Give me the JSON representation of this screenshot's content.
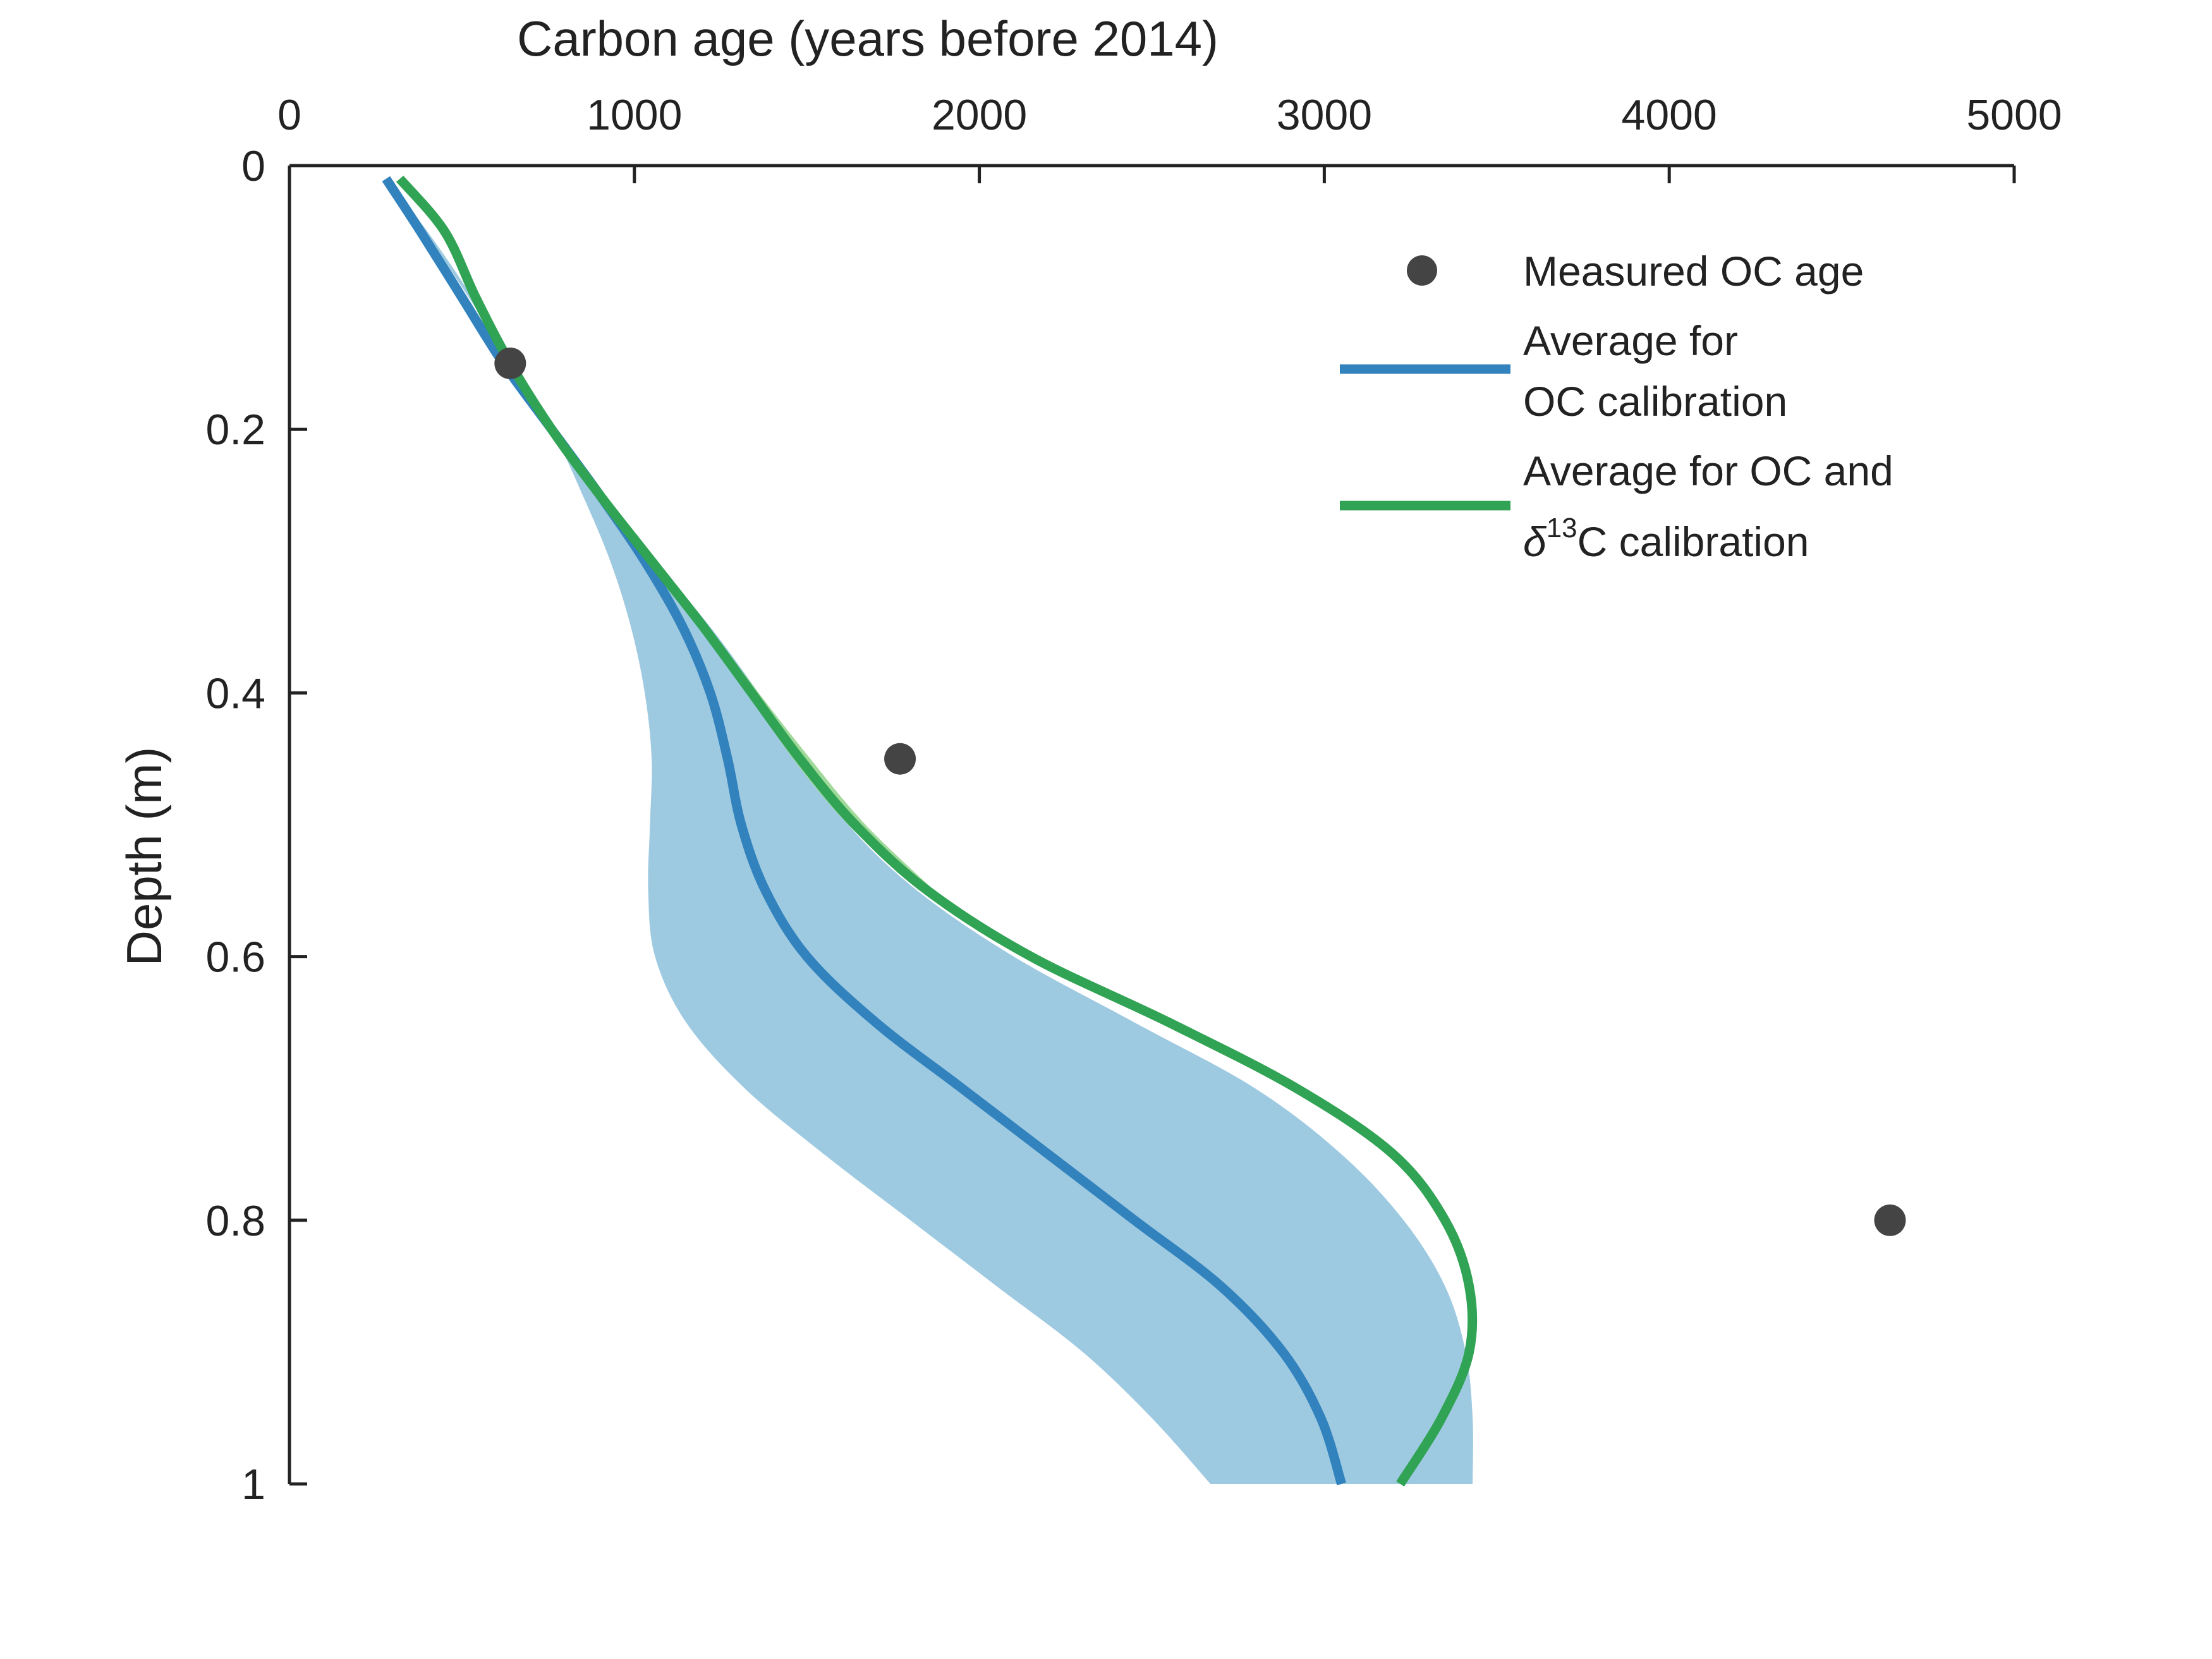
{
  "chart_data": {
    "type": "line",
    "xlabel": "Carbon age (years before 2014)",
    "ylabel": "Depth (m)",
    "x_axis_position": "top",
    "y_axis_reversed": true,
    "xlim": [
      0,
      5000
    ],
    "ylim": [
      0,
      1
    ],
    "x_ticks": [
      0,
      1000,
      2000,
      3000,
      4000,
      5000
    ],
    "x_tick_labels": [
      "0",
      "1000",
      "2000",
      "3000",
      "4000",
      "5000"
    ],
    "y_ticks": [
      0,
      0.2,
      0.4,
      0.6,
      0.8,
      1
    ],
    "y_tick_labels": [
      "0",
      "0.2",
      "0.4",
      "0.6",
      "0.8",
      "1"
    ],
    "grid": false,
    "legend_position": "top-right",
    "measured": {
      "name": "Measured OC age",
      "color": "#444444",
      "points": [
        {
          "age": 640,
          "depth": 0.15
        },
        {
          "age": 1770,
          "depth": 0.45
        },
        {
          "age": 4640,
          "depth": 0.8
        }
      ]
    },
    "series": [
      {
        "name_line1": "Average for",
        "name_line2": "OC calibration",
        "color": "#3182bd",
        "points": [
          [
            280,
            0.01
          ],
          [
            380,
            0.05
          ],
          [
            500,
            0.1
          ],
          [
            620,
            0.15
          ],
          [
            760,
            0.2
          ],
          [
            900,
            0.25
          ],
          [
            1030,
            0.3
          ],
          [
            1140,
            0.35
          ],
          [
            1220,
            0.4
          ],
          [
            1270,
            0.45
          ],
          [
            1310,
            0.5
          ],
          [
            1380,
            0.55
          ],
          [
            1500,
            0.6
          ],
          [
            1700,
            0.65
          ],
          [
            1950,
            0.7
          ],
          [
            2200,
            0.75
          ],
          [
            2450,
            0.8
          ],
          [
            2700,
            0.85
          ],
          [
            2880,
            0.9
          ],
          [
            2990,
            0.95
          ],
          [
            3050,
            1.0
          ]
        ]
      },
      {
        "name_line1": "Average for OC and",
        "name_line2_sup": "13",
        "name_line2_rest": "C calibration",
        "name_line2_prefix": "δ",
        "color": "#31a354",
        "points": [
          [
            320,
            0.01
          ],
          [
            450,
            0.05
          ],
          [
            540,
            0.1
          ],
          [
            640,
            0.15
          ],
          [
            760,
            0.2
          ],
          [
            900,
            0.25
          ],
          [
            1050,
            0.3
          ],
          [
            1200,
            0.35
          ],
          [
            1340,
            0.4
          ],
          [
            1480,
            0.45
          ],
          [
            1640,
            0.5
          ],
          [
            1850,
            0.55
          ],
          [
            2150,
            0.6
          ],
          [
            2550,
            0.65
          ],
          [
            2920,
            0.7
          ],
          [
            3200,
            0.75
          ],
          [
            3350,
            0.8
          ],
          [
            3420,
            0.85
          ],
          [
            3420,
            0.9
          ],
          [
            3340,
            0.95
          ],
          [
            3220,
            1.0
          ]
        ]
      }
    ],
    "bands": [
      {
        "color": "#9ecae1",
        "lower": [
          [
            280,
            0.01
          ],
          [
            400,
            0.05
          ],
          [
            530,
            0.1
          ],
          [
            640,
            0.15
          ],
          [
            760,
            0.2
          ],
          [
            850,
            0.25
          ],
          [
            930,
            0.3
          ],
          [
            990,
            0.35
          ],
          [
            1030,
            0.4
          ],
          [
            1050,
            0.45
          ],
          [
            1045,
            0.5
          ],
          [
            1040,
            0.55
          ],
          [
            1060,
            0.6
          ],
          [
            1150,
            0.65
          ],
          [
            1320,
            0.7
          ],
          [
            1550,
            0.75
          ],
          [
            1800,
            0.8
          ],
          [
            2050,
            0.85
          ],
          [
            2300,
            0.9
          ],
          [
            2500,
            0.95
          ],
          [
            2670,
            1.0
          ]
        ],
        "upper": [
          [
            280,
            0.01
          ],
          [
            390,
            0.05
          ],
          [
            520,
            0.1
          ],
          [
            640,
            0.15
          ],
          [
            760,
            0.2
          ],
          [
            900,
            0.25
          ],
          [
            1060,
            0.3
          ],
          [
            1220,
            0.35
          ],
          [
            1360,
            0.4
          ],
          [
            1490,
            0.45
          ],
          [
            1620,
            0.5
          ],
          [
            1820,
            0.55
          ],
          [
            2100,
            0.6
          ],
          [
            2450,
            0.65
          ],
          [
            2800,
            0.7
          ],
          [
            3050,
            0.75
          ],
          [
            3230,
            0.8
          ],
          [
            3350,
            0.85
          ],
          [
            3410,
            0.9
          ],
          [
            3430,
            0.95
          ],
          [
            3430,
            1.0
          ]
        ]
      },
      {
        "color": "#a1d99b",
        "lower": [
          [
            1050,
            0.3
          ],
          [
            1200,
            0.35
          ],
          [
            1330,
            0.4
          ],
          [
            1460,
            0.45
          ],
          [
            1620,
            0.5
          ],
          [
            1830,
            0.55
          ]
        ],
        "upper": [
          [
            1060,
            0.3
          ],
          [
            1215,
            0.35
          ],
          [
            1360,
            0.4
          ],
          [
            1510,
            0.45
          ],
          [
            1670,
            0.5
          ],
          [
            1870,
            0.55
          ]
        ]
      }
    ]
  }
}
